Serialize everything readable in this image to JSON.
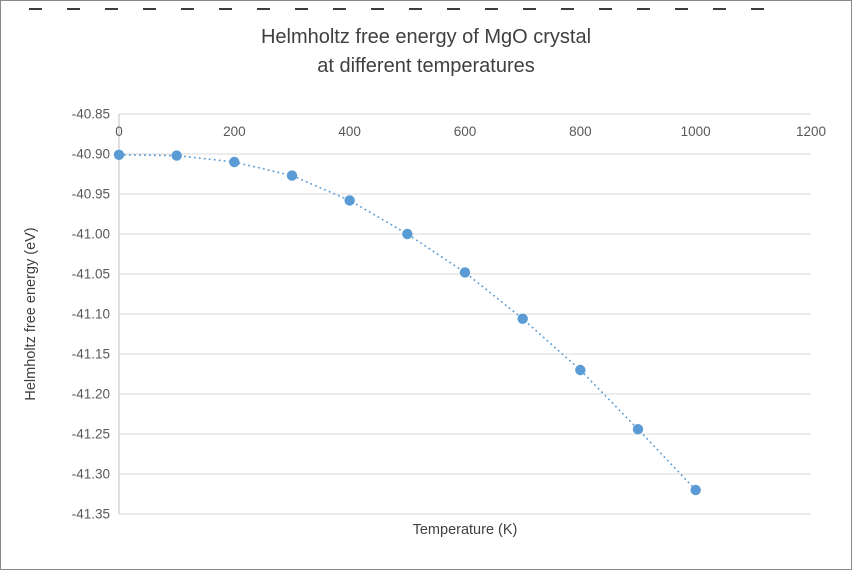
{
  "chart_data": {
    "type": "scatter",
    "title": "Helmholtz free energy of MgO crystal at different temperatures",
    "title_lines": [
      "Helmholtz free energy of MgO crystal",
      "at different temperatures"
    ],
    "xlabel": "Temperature (K)",
    "ylabel": "Helmholtz free energy (eV)",
    "x": [
      0,
      100,
      200,
      300,
      400,
      500,
      600,
      700,
      800,
      900,
      1000
    ],
    "y": [
      -40.901,
      -40.902,
      -40.91,
      -40.927,
      -40.958,
      -41.0,
      -41.048,
      -41.106,
      -41.17,
      -41.244,
      -41.32
    ],
    "xlim": [
      0,
      1200
    ],
    "ylim": [
      -41.35,
      -40.85
    ],
    "x_ticks": [
      0,
      200,
      400,
      600,
      800,
      1000,
      1200
    ],
    "y_ticks": [
      -40.85,
      -40.9,
      -40.95,
      -41.0,
      -41.05,
      -41.1,
      -41.15,
      -41.2,
      -41.25,
      -41.3,
      -41.35
    ],
    "marker_color": "#5B9BD5",
    "gridline_color": "#D9D9D9",
    "axis_line_color": "#BFBFBF",
    "line_style": "dotted",
    "grid": "horizontal",
    "legend": "none"
  }
}
